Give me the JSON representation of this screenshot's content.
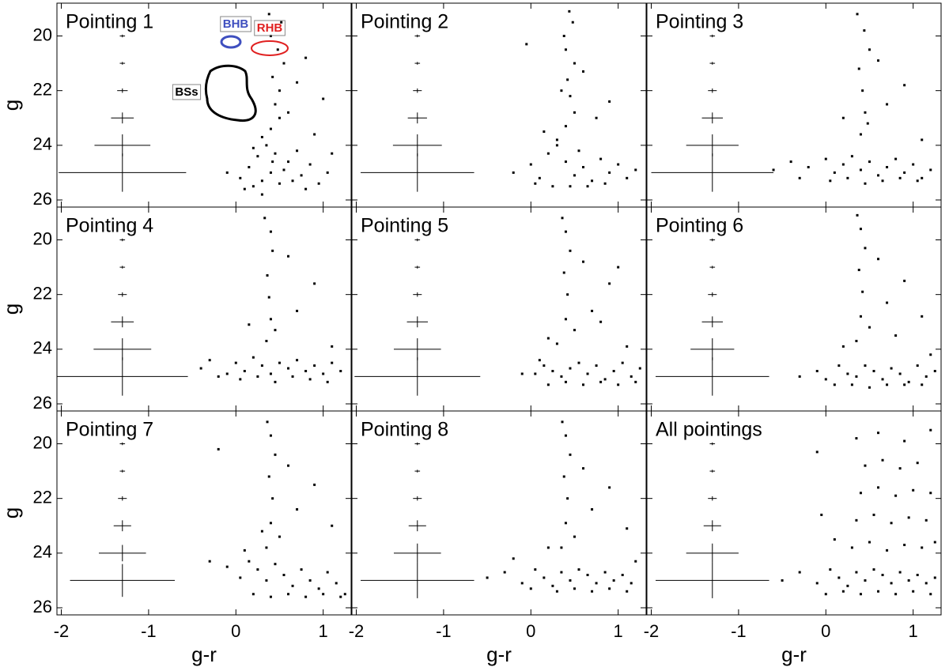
{
  "chart_data": [
    {
      "type": "scatter",
      "title": "Pointing 1",
      "ylabel": "g",
      "color": "#000000",
      "xlim": [
        -2.05,
        1.32
      ],
      "ylim": [
        26.26,
        18.8
      ],
      "xticks": [
        -2,
        -1,
        0,
        1
      ],
      "yticks": [
        20,
        22,
        24,
        26
      ],
      "x": [
        0.05,
        0.15,
        0.25,
        0.35,
        0.45,
        0.55,
        0.65,
        0.75,
        0.85,
        0.95,
        1.05,
        0.1,
        0.2,
        0.3,
        0.4,
        0.5,
        0.6,
        0.7,
        0.8,
        0.2,
        0.3,
        0.4,
        0.5,
        0.45,
        0.5,
        0.42,
        0.55,
        0.48,
        0.4,
        0.52,
        0.38,
        0.6,
        0.7,
        0.8,
        0.9,
        1.0,
        1.1,
        0.3,
        0.42,
        -0.1
      ],
      "y": [
        25.2,
        24.8,
        24.4,
        24.0,
        24.3,
        24.9,
        25.3,
        25.1,
        24.7,
        25.4,
        25.0,
        25.6,
        25.5,
        25.3,
        25.0,
        25.4,
        24.6,
        24.2,
        25.6,
        24.1,
        23.7,
        23.4,
        23.0,
        22.5,
        22.0,
        21.5,
        21.0,
        20.5,
        20.0,
        19.5,
        19.2,
        22.8,
        21.7,
        20.8,
        23.6,
        22.3,
        24.3,
        25.8,
        24.6,
        25.0
      ],
      "errorbars": {
        "x": -1.3,
        "g": [
          20,
          21,
          22,
          23,
          24,
          25
        ],
        "xerr": [
          0.03,
          0.03,
          0.06,
          0.13,
          0.32,
          0.73
        ],
        "yerr": [
          0.05,
          0.05,
          0.08,
          0.2,
          0.4,
          0.7
        ]
      },
      "annotations": [
        {
          "text": "BHB",
          "color": "#3f4fbf"
        },
        {
          "text": "RHB",
          "color": "#e02020"
        },
        {
          "text": "BSs",
          "color": "#000000"
        }
      ]
    },
    {
      "type": "scatter",
      "title": "Pointing 2",
      "color": "#000000",
      "xlim": [
        -2.05,
        1.32
      ],
      "ylim": [
        26.26,
        18.8
      ],
      "xticks": [
        -2,
        -1,
        0,
        1
      ],
      "yticks": [
        20,
        22,
        24,
        26
      ],
      "x": [
        -0.2,
        0,
        0.1,
        0.2,
        0.3,
        0.4,
        0.5,
        0.6,
        0.7,
        0.8,
        0.9,
        1.0,
        1.1,
        1.2,
        0.05,
        0.25,
        0.45,
        0.65,
        0.85,
        0.3,
        0.4,
        0.5,
        0.45,
        0.42,
        0.5,
        0.4,
        0.38,
        0.48,
        0.44,
        0.35,
        0.6,
        0.75,
        0.9,
        -0.05,
        0.15,
        0.55
      ],
      "y": [
        25.0,
        24.7,
        25.2,
        24.3,
        24.0,
        24.6,
        25.1,
        24.8,
        25.3,
        24.5,
        25.0,
        24.7,
        25.2,
        24.9,
        25.4,
        25.5,
        25.5,
        25.5,
        25.4,
        23.8,
        23.3,
        22.8,
        22.2,
        21.6,
        21.0,
        20.5,
        20.0,
        19.5,
        19.1,
        22.0,
        21.3,
        23.0,
        22.4,
        20.3,
        23.5,
        24.2
      ],
      "errorbars": {
        "x": -1.3,
        "g": [
          20,
          21,
          22,
          23,
          24,
          25
        ],
        "xerr": [
          0.03,
          0.03,
          0.05,
          0.11,
          0.28,
          0.65
        ],
        "yerr": [
          0.05,
          0.05,
          0.08,
          0.2,
          0.4,
          0.7
        ]
      }
    },
    {
      "type": "scatter",
      "title": "Pointing 3",
      "color": "#000000",
      "xlim": [
        -2.05,
        1.32
      ],
      "ylim": [
        26.26,
        18.8
      ],
      "xticks": [
        -2,
        -1,
        0,
        1
      ],
      "yticks": [
        20,
        22,
        24,
        26
      ],
      "x": [
        -0.6,
        -0.4,
        -0.2,
        0,
        0.1,
        0.2,
        0.3,
        0.4,
        0.5,
        0.6,
        0.7,
        0.8,
        0.9,
        1.0,
        1.1,
        1.2,
        -0.3,
        0.05,
        0.25,
        0.45,
        0.65,
        0.85,
        1.05,
        0.4,
        0.45,
        0.42,
        0.38,
        0.5,
        0.44,
        0.36,
        0.48,
        0.7,
        0.9,
        1.1,
        0.2,
        0.6
      ],
      "y": [
        24.9,
        24.6,
        24.8,
        24.5,
        25.0,
        24.7,
        24.4,
        24.9,
        24.6,
        25.1,
        24.8,
        24.5,
        25.0,
        24.7,
        25.2,
        24.9,
        25.2,
        25.3,
        25.2,
        25.4,
        25.3,
        25.2,
        25.3,
        23.6,
        22.8,
        22.0,
        21.2,
        20.5,
        19.8,
        19.2,
        23.2,
        22.5,
        21.8,
        23.8,
        23.0,
        20.9
      ],
      "errorbars": {
        "x": -1.3,
        "g": [
          20,
          21,
          22,
          23,
          24,
          25
        ],
        "xerr": [
          0.03,
          0.03,
          0.05,
          0.12,
          0.3,
          0.7
        ],
        "yerr": [
          0.05,
          0.05,
          0.08,
          0.2,
          0.4,
          0.7
        ]
      }
    },
    {
      "type": "scatter",
      "title": "Pointing 4",
      "ylabel": "g",
      "color": "#000000",
      "xlim": [
        -2.05,
        1.32
      ],
      "ylim": [
        26.26,
        18.8
      ],
      "xticks": [
        -2,
        -1,
        0,
        1
      ],
      "yticks": [
        20,
        22,
        24,
        26
      ],
      "x": [
        -0.4,
        -0.3,
        -0.1,
        0,
        0.1,
        0.2,
        0.3,
        0.4,
        0.5,
        0.6,
        0.7,
        0.8,
        0.9,
        1.0,
        1.1,
        1.2,
        -0.2,
        0.05,
        0.25,
        0.45,
        0.65,
        0.85,
        1.05,
        0.35,
        0.4,
        0.38,
        0.36,
        0.42,
        0.4,
        0.33,
        0.45,
        0.7,
        0.9,
        1.1,
        0.15,
        0.6
      ],
      "y": [
        24.7,
        24.4,
        24.9,
        24.5,
        24.8,
        24.3,
        24.6,
        24.9,
        24.5,
        24.7,
        24.4,
        24.8,
        24.6,
        24.9,
        24.5,
        24.8,
        25.0,
        25.1,
        25.0,
        25.2,
        25.0,
        25.1,
        25.2,
        23.7,
        22.9,
        22.1,
        21.3,
        20.4,
        19.7,
        19.2,
        23.3,
        22.6,
        21.6,
        23.9,
        23.1,
        20.6
      ],
      "errorbars": {
        "x": -1.3,
        "g": [
          20,
          21,
          22,
          23,
          24,
          25
        ],
        "xerr": [
          0.03,
          0.03,
          0.05,
          0.13,
          0.33,
          0.75
        ],
        "yerr": [
          0.05,
          0.05,
          0.08,
          0.2,
          0.4,
          0.7
        ]
      }
    },
    {
      "type": "scatter",
      "title": "Pointing 5",
      "color": "#000000",
      "xlim": [
        -2.05,
        1.32
      ],
      "ylim": [
        26.26,
        18.8
      ],
      "xticks": [
        -2,
        -1,
        0,
        1
      ],
      "yticks": [
        20,
        22,
        24,
        26
      ],
      "x": [
        0.05,
        0.15,
        0.25,
        0.35,
        0.45,
        0.55,
        0.65,
        0.75,
        0.85,
        0.95,
        1.05,
        1.15,
        1.25,
        0.2,
        0.4,
        0.6,
        0.8,
        1.0,
        1.2,
        0.3,
        0.4,
        0.42,
        0.38,
        0.45,
        0.4,
        0.36,
        0.5,
        0.7,
        0.9,
        1.1,
        0.1,
        0.6,
        0.8,
        -0.1,
        0.2,
        1.0
      ],
      "y": [
        24.9,
        24.6,
        24.8,
        25.0,
        24.7,
        24.5,
        24.9,
        24.6,
        25.1,
        24.8,
        24.5,
        25.0,
        24.7,
        25.3,
        25.2,
        25.3,
        25.2,
        25.3,
        25.2,
        23.8,
        22.9,
        22.0,
        21.2,
        20.4,
        19.7,
        19.2,
        23.3,
        22.6,
        21.6,
        23.9,
        24.4,
        20.8,
        23.0,
        24.9,
        23.6,
        21.0
      ],
      "errorbars": {
        "x": -1.3,
        "g": [
          20,
          21,
          22,
          23,
          24,
          25
        ],
        "xerr": [
          0.03,
          0.03,
          0.05,
          0.12,
          0.27,
          0.72
        ],
        "yerr": [
          0.05,
          0.05,
          0.08,
          0.2,
          0.4,
          0.7
        ]
      }
    },
    {
      "type": "scatter",
      "title": "Pointing 6",
      "color": "#000000",
      "xlim": [
        -2.05,
        1.32
      ],
      "ylim": [
        26.26,
        18.8
      ],
      "xticks": [
        -2,
        -1,
        0,
        1
      ],
      "yticks": [
        20,
        22,
        24,
        26
      ],
      "x": [
        -0.1,
        0.0,
        0.15,
        0.25,
        0.35,
        0.45,
        0.55,
        0.65,
        0.75,
        0.85,
        0.95,
        1.05,
        1.15,
        1.25,
        0.1,
        0.3,
        0.5,
        0.7,
        0.9,
        1.1,
        0.35,
        0.4,
        0.42,
        0.38,
        0.45,
        0.4,
        0.36,
        0.5,
        0.7,
        0.9,
        1.1,
        0.6,
        0.8,
        -0.3,
        1.2,
        0.2
      ],
      "y": [
        24.8,
        25.1,
        24.6,
        24.9,
        25.0,
        24.6,
        24.8,
        25.1,
        24.7,
        24.9,
        25.2,
        24.6,
        25.0,
        24.8,
        25.3,
        25.3,
        25.4,
        25.3,
        25.3,
        25.3,
        23.7,
        22.8,
        21.9,
        21.1,
        20.3,
        19.6,
        19.1,
        23.2,
        22.3,
        21.5,
        22.8,
        20.7,
        23.5,
        25.0,
        24.2,
        23.9
      ],
      "errorbars": {
        "x": -1.3,
        "g": [
          20,
          21,
          22,
          23,
          24,
          25
        ],
        "xerr": [
          0.03,
          0.03,
          0.05,
          0.12,
          0.25,
          0.65
        ],
        "yerr": [
          0.05,
          0.05,
          0.08,
          0.2,
          0.4,
          0.7
        ]
      }
    },
    {
      "type": "scatter",
      "title": "Pointing 7",
      "ylabel": "g",
      "xlabel": "g-r",
      "color": "#000000",
      "xlim": [
        -2.05,
        1.32
      ],
      "ylim": [
        26.26,
        18.8
      ],
      "xticks": [
        -2,
        -1,
        0,
        1
      ],
      "yticks": [
        20,
        22,
        24,
        26
      ],
      "x": [
        -0.3,
        -0.1,
        0.05,
        0.15,
        0.25,
        0.35,
        0.45,
        0.55,
        0.65,
        0.75,
        0.85,
        0.95,
        1.05,
        1.15,
        1.25,
        0.2,
        0.4,
        0.6,
        0.8,
        1.0,
        1.2,
        0.35,
        0.4,
        0.42,
        0.38,
        0.45,
        0.4,
        0.36,
        0.5,
        0.7,
        0.9,
        1.1,
        0.6,
        -0.2,
        0.1,
        0.3
      ],
      "y": [
        24.3,
        24.5,
        24.9,
        24.3,
        24.6,
        25.0,
        24.4,
        24.8,
        25.2,
        24.6,
        25.0,
        25.3,
        24.7,
        25.1,
        25.5,
        25.5,
        25.6,
        25.5,
        25.6,
        25.5,
        25.6,
        23.8,
        22.9,
        22.0,
        21.2,
        20.4,
        19.7,
        19.2,
        23.4,
        22.4,
        21.5,
        23.0,
        20.8,
        20.2,
        23.9,
        23.2
      ],
      "errorbars": {
        "x": -1.3,
        "g": [
          20,
          21,
          22,
          23,
          24,
          25
        ],
        "xerr": [
          0.03,
          0.03,
          0.05,
          0.1,
          0.27,
          0.6
        ],
        "yerr": [
          0.05,
          0.05,
          0.08,
          0.2,
          0.3,
          0.6
        ]
      }
    },
    {
      "type": "scatter",
      "title": "Pointing 8",
      "xlabel": "g-r",
      "color": "#000000",
      "xlim": [
        -2.05,
        1.32
      ],
      "ylim": [
        26.26,
        18.8
      ],
      "xticks": [
        -2,
        -1,
        0,
        1
      ],
      "yticks": [
        20,
        22,
        24,
        26
      ],
      "x": [
        -0.5,
        -0.3,
        -0.1,
        0.05,
        0.15,
        0.25,
        0.35,
        0.45,
        0.55,
        0.65,
        0.75,
        0.85,
        0.95,
        1.05,
        1.15,
        0.0,
        0.3,
        0.5,
        0.7,
        0.9,
        1.1,
        0.35,
        0.4,
        0.42,
        0.38,
        0.45,
        0.4,
        0.36,
        0.5,
        0.7,
        0.9,
        1.1,
        0.6,
        -0.2,
        1.2,
        0.2
      ],
      "y": [
        24.9,
        24.7,
        25.1,
        24.6,
        24.9,
        25.2,
        24.7,
        25.0,
        24.6,
        24.8,
        25.1,
        24.7,
        25.0,
        24.8,
        25.1,
        25.3,
        25.4,
        25.3,
        25.4,
        25.3,
        25.4,
        23.8,
        22.9,
        22.0,
        21.2,
        20.4,
        19.7,
        19.2,
        23.4,
        22.4,
        21.6,
        23.1,
        20.9,
        24.2,
        24.3,
        23.8
      ],
      "errorbars": {
        "x": -1.3,
        "g": [
          20,
          21,
          22,
          23,
          24,
          25
        ],
        "xerr": [
          0.03,
          0.03,
          0.05,
          0.1,
          0.27,
          0.65
        ],
        "yerr": [
          0.05,
          0.05,
          0.08,
          0.2,
          0.35,
          0.65
        ]
      }
    },
    {
      "type": "scatter",
      "title": "All pointings",
      "xlabel": "g-r",
      "color": "#000000",
      "xlim": [
        -2.05,
        1.32
      ],
      "ylim": [
        26.26,
        18.8
      ],
      "xticks": [
        -2,
        -1,
        0,
        1
      ],
      "yticks": [
        20,
        22,
        24,
        26
      ],
      "x": [
        -0.5,
        -0.3,
        -0.1,
        0.05,
        0.15,
        0.25,
        0.35,
        0.45,
        0.55,
        0.65,
        0.75,
        0.85,
        0.95,
        1.05,
        1.15,
        1.25,
        0.0,
        0.2,
        0.4,
        0.6,
        0.8,
        1.0,
        1.2,
        0.3,
        0.5,
        0.7,
        0.9,
        1.1,
        1.25,
        0.35,
        0.55,
        0.75,
        0.95,
        1.15,
        0.4,
        0.6,
        0.8,
        1.0,
        1.2,
        0.45,
        0.65,
        0.85,
        1.05,
        0.35,
        0.6,
        0.9,
        1.2,
        -0.1,
        0.1,
        -0.05
      ],
      "y": [
        25.0,
        24.7,
        25.1,
        24.6,
        24.9,
        25.2,
        24.7,
        25.0,
        24.6,
        24.8,
        25.1,
        24.7,
        25.0,
        24.8,
        25.1,
        24.9,
        25.5,
        25.4,
        25.5,
        25.4,
        25.5,
        25.4,
        25.5,
        23.8,
        23.6,
        23.9,
        23.7,
        23.8,
        23.6,
        22.8,
        22.6,
        22.9,
        22.7,
        22.8,
        21.8,
        21.6,
        21.9,
        21.7,
        21.8,
        20.8,
        20.6,
        20.9,
        20.7,
        19.8,
        19.6,
        19.9,
        19.5,
        20.3,
        23.5,
        22.6
      ],
      "errorbars": {
        "x": -1.3,
        "g": [
          20,
          21,
          22,
          23,
          24,
          25
        ],
        "xerr": [
          0.03,
          0.03,
          0.05,
          0.1,
          0.3,
          0.65
        ],
        "yerr": [
          0.05,
          0.05,
          0.08,
          0.2,
          0.35,
          0.65
        ]
      }
    }
  ]
}
